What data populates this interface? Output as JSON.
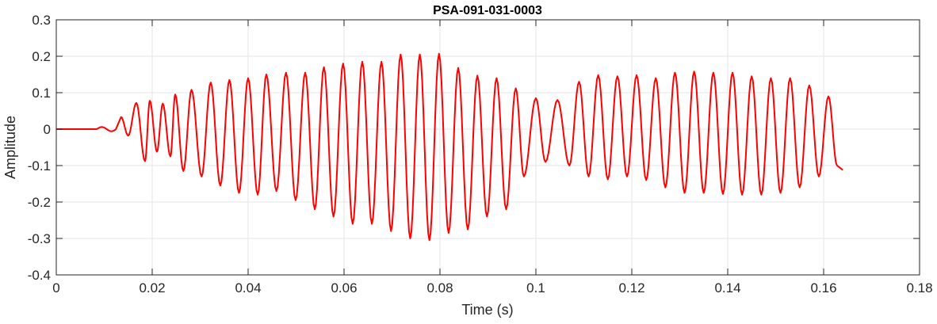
{
  "chart_data": {
    "type": "line",
    "title": "PSA-091-031-0003",
    "xlabel": "Time (s)",
    "ylabel": "Amplitude",
    "xlim": [
      0,
      0.18
    ],
    "ylim": [
      -0.4,
      0.3
    ],
    "xticks": [
      0,
      0.02,
      0.04,
      0.06,
      0.08,
      0.1,
      0.12,
      0.14,
      0.16,
      0.18
    ],
    "xtick_labels": [
      "0",
      "0.02",
      "0.04",
      "0.06",
      "0.08",
      "0.1",
      "0.12",
      "0.14",
      "0.16",
      "0.18"
    ],
    "yticks": [
      -0.4,
      -0.3,
      -0.2,
      -0.1,
      0,
      0.1,
      0.2,
      0.3
    ],
    "ytick_labels": [
      "-0.4",
      "-0.3",
      "-0.2",
      "-0.1",
      "0",
      "0.1",
      "0.2",
      "0.3"
    ],
    "grid": true,
    "line_color": "#ff0000",
    "series": [
      {
        "values_per_cycle_note": "",
        "peaks": [
          {
            "x": 0.0135,
            "y": 0.033
          },
          {
            "x": 0.0167,
            "y": 0.072
          },
          {
            "x": 0.0195,
            "y": 0.078
          },
          {
            "x": 0.0222,
            "y": 0.07
          },
          {
            "x": 0.0248,
            "y": 0.095
          },
          {
            "x": 0.0282,
            "y": 0.108
          },
          {
            "x": 0.0322,
            "y": 0.128
          },
          {
            "x": 0.0361,
            "y": 0.135
          },
          {
            "x": 0.04,
            "y": 0.14
          },
          {
            "x": 0.0438,
            "y": 0.15
          },
          {
            "x": 0.0479,
            "y": 0.155
          },
          {
            "x": 0.0519,
            "y": 0.155
          },
          {
            "x": 0.0558,
            "y": 0.17
          },
          {
            "x": 0.0598,
            "y": 0.18
          },
          {
            "x": 0.0638,
            "y": 0.185
          },
          {
            "x": 0.0678,
            "y": 0.185
          },
          {
            "x": 0.0718,
            "y": 0.205
          },
          {
            "x": 0.0758,
            "y": 0.205
          },
          {
            "x": 0.0798,
            "y": 0.207
          },
          {
            "x": 0.0838,
            "y": 0.168
          },
          {
            "x": 0.0878,
            "y": 0.147
          },
          {
            "x": 0.0918,
            "y": 0.14
          },
          {
            "x": 0.0958,
            "y": 0.112
          },
          {
            "x": 0.1,
            "y": 0.085
          },
          {
            "x": 0.1045,
            "y": 0.08
          },
          {
            "x": 0.109,
            "y": 0.13
          },
          {
            "x": 0.113,
            "y": 0.148
          },
          {
            "x": 0.117,
            "y": 0.145
          },
          {
            "x": 0.121,
            "y": 0.148
          },
          {
            "x": 0.125,
            "y": 0.14
          },
          {
            "x": 0.129,
            "y": 0.155
          },
          {
            "x": 0.133,
            "y": 0.158
          },
          {
            "x": 0.137,
            "y": 0.155
          },
          {
            "x": 0.141,
            "y": 0.155
          },
          {
            "x": 0.145,
            "y": 0.145
          },
          {
            "x": 0.149,
            "y": 0.14
          },
          {
            "x": 0.153,
            "y": 0.14
          },
          {
            "x": 0.157,
            "y": 0.12
          },
          {
            "x": 0.161,
            "y": 0.09
          }
        ],
        "troughs": [
          {
            "x": 0.015,
            "y": -0.018
          },
          {
            "x": 0.0185,
            "y": -0.088
          },
          {
            "x": 0.021,
            "y": -0.062
          },
          {
            "x": 0.0238,
            "y": -0.075
          },
          {
            "x": 0.0265,
            "y": -0.115
          },
          {
            "x": 0.0303,
            "y": -0.13
          },
          {
            "x": 0.0342,
            "y": -0.155
          },
          {
            "x": 0.0381,
            "y": -0.175
          },
          {
            "x": 0.042,
            "y": -0.18
          },
          {
            "x": 0.0459,
            "y": -0.17
          },
          {
            "x": 0.0499,
            "y": -0.195
          },
          {
            "x": 0.0539,
            "y": -0.22
          },
          {
            "x": 0.0578,
            "y": -0.24
          },
          {
            "x": 0.0618,
            "y": -0.26
          },
          {
            "x": 0.0658,
            "y": -0.26
          },
          {
            "x": 0.0698,
            "y": -0.28
          },
          {
            "x": 0.0738,
            "y": -0.3
          },
          {
            "x": 0.0778,
            "y": -0.305
          },
          {
            "x": 0.0818,
            "y": -0.285
          },
          {
            "x": 0.0858,
            "y": -0.275
          },
          {
            "x": 0.0898,
            "y": -0.24
          },
          {
            "x": 0.0938,
            "y": -0.22
          },
          {
            "x": 0.0975,
            "y": -0.13
          },
          {
            "x": 0.102,
            "y": -0.09
          },
          {
            "x": 0.107,
            "y": -0.1
          },
          {
            "x": 0.111,
            "y": -0.13
          },
          {
            "x": 0.115,
            "y": -0.138
          },
          {
            "x": 0.119,
            "y": -0.13
          },
          {
            "x": 0.123,
            "y": -0.14
          },
          {
            "x": 0.127,
            "y": -0.16
          },
          {
            "x": 0.131,
            "y": -0.175
          },
          {
            "x": 0.135,
            "y": -0.175
          },
          {
            "x": 0.139,
            "y": -0.178
          },
          {
            "x": 0.143,
            "y": -0.18
          },
          {
            "x": 0.147,
            "y": -0.18
          },
          {
            "x": 0.151,
            "y": -0.175
          },
          {
            "x": 0.155,
            "y": -0.16
          },
          {
            "x": 0.159,
            "y": -0.13
          },
          {
            "x": 0.1628,
            "y": -0.1
          }
        ],
        "start": {
          "x": 0,
          "y": 0.0
        },
        "end": {
          "x": 0.164,
          "y": -0.112
        }
      }
    ]
  }
}
